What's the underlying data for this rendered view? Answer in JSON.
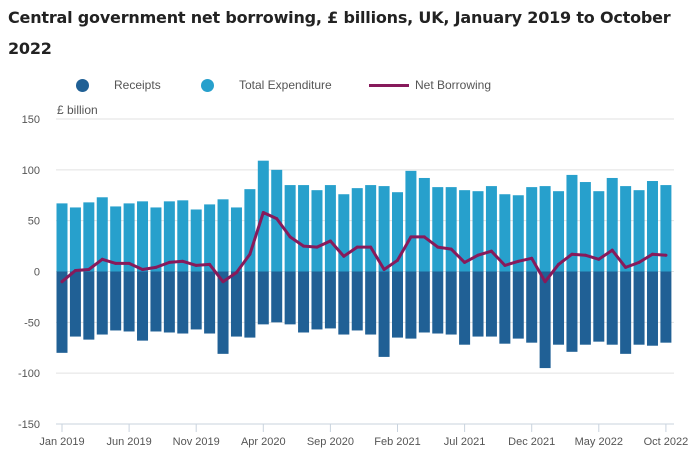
{
  "chart_data": {
    "type": "bar",
    "title": "Central government net borrowing, £ billions, UK, January 2019 to October 2022",
    "title_lines": [
      "Central government net borrowing, £ billions, UK, January 2019 to October",
      "2022"
    ],
    "xlabel": "",
    "ylabel": "£ billion",
    "ylim": [
      -150,
      150
    ],
    "yticks": [
      150,
      100,
      50,
      0,
      -50,
      -100,
      -150
    ],
    "grid": true,
    "legend_position": "top",
    "x_tick_labels": [
      "Jan 2019",
      "Jun 2019",
      "Nov 2019",
      "Apr 2020",
      "Sep 2020",
      "Feb 2021",
      "Jul 2021",
      "Dec 2021",
      "May 2022",
      "Oct 2022"
    ],
    "x_tick_every_months": 5,
    "categories": [
      "Jan 2019",
      "Feb 2019",
      "Mar 2019",
      "Apr 2019",
      "May 2019",
      "Jun 2019",
      "Jul 2019",
      "Aug 2019",
      "Sep 2019",
      "Oct 2019",
      "Nov 2019",
      "Dec 2019",
      "Jan 2020",
      "Feb 2020",
      "Mar 2020",
      "Apr 2020",
      "May 2020",
      "Jun 2020",
      "Jul 2020",
      "Aug 2020",
      "Sep 2020",
      "Oct 2020",
      "Nov 2020",
      "Dec 2020",
      "Jan 2021",
      "Feb 2021",
      "Mar 2021",
      "Apr 2021",
      "May 2021",
      "Jun 2021",
      "Jul 2021",
      "Aug 2021",
      "Sep 2021",
      "Oct 2021",
      "Nov 2021",
      "Dec 2021",
      "Jan 2022",
      "Feb 2022",
      "Mar 2022",
      "Apr 2022",
      "May 2022",
      "Jun 2022",
      "Jul 2022",
      "Aug 2022",
      "Sep 2022",
      "Oct 2022"
    ],
    "series": [
      {
        "name": "Receipts",
        "kind": "bar",
        "color": "#206095",
        "values": [
          -80,
          -64,
          -67,
          -62,
          -58,
          -59,
          -68,
          -59,
          -60,
          -61,
          -57,
          -61,
          -81,
          -64,
          -65,
          -52,
          -50,
          -52,
          -60,
          -57,
          -56,
          -62,
          -58,
          -62,
          -84,
          -65,
          -66,
          -60,
          -61,
          -62,
          -72,
          -64,
          -64,
          -71,
          -66,
          -70,
          -95,
          -72,
          -79,
          -72,
          -69,
          -72,
          -81,
          -72,
          -73,
          -70
        ]
      },
      {
        "name": "Total Expenditure",
        "kind": "bar",
        "color": "#27a0cc",
        "values": [
          67,
          63,
          68,
          73,
          64,
          67,
          69,
          63,
          69,
          70,
          61,
          66,
          71,
          63,
          81,
          109,
          100,
          85,
          85,
          80,
          85,
          76,
          82,
          85,
          84,
          78,
          99,
          92,
          83,
          83,
          80,
          79,
          84,
          76,
          75,
          83,
          84,
          79,
          95,
          88,
          79,
          92,
          84,
          80,
          89,
          85
        ]
      },
      {
        "name": "Net Borrowing",
        "kind": "line",
        "color": "#871a5b",
        "values": [
          -10,
          1,
          2,
          12,
          8,
          8,
          2,
          4,
          9,
          10,
          6,
          7,
          -10,
          -1,
          17,
          58,
          52,
          34,
          25,
          24,
          30,
          15,
          24,
          24,
          2,
          11,
          34,
          34,
          24,
          22,
          9,
          16,
          20,
          6,
          10,
          13,
          -10,
          7,
          17,
          16,
          12,
          21,
          4,
          9,
          17,
          16
        ]
      }
    ]
  }
}
